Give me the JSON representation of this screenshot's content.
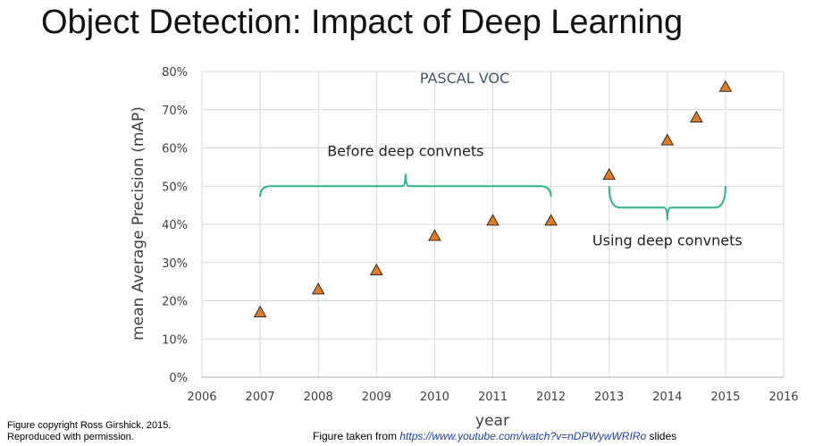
{
  "slide": {
    "title": "Object Detection: Impact of Deep Learning",
    "credit_line1": "Figure copyright Ross Girshick, 2015.",
    "credit_line2": "Reproduced with permission.",
    "source_prefix": "Figure taken from ",
    "source_link": "https://www.youtube.com/watch?v=nDPWywWRIRo",
    "source_suffix": " slides"
  },
  "chart_data": {
    "type": "scatter",
    "title": "PASCAL VOC",
    "xlabel": "year",
    "ylabel": "mean Average Precision (mAP)",
    "xlim": [
      2006,
      2016
    ],
    "ylim": [
      0,
      80
    ],
    "x_ticks": [
      "2006",
      "2007",
      "2008",
      "2009",
      "2010",
      "2011",
      "2012",
      "2013",
      "2014",
      "2015",
      "2016"
    ],
    "y_ticks": [
      "0%",
      "10%",
      "20%",
      "30%",
      "40%",
      "50%",
      "60%",
      "70%",
      "80%"
    ],
    "grid": true,
    "marker": "triangle",
    "marker_color": "#e07b2a",
    "bracket_color": "#2bb38a",
    "points": [
      {
        "x": 2007,
        "y": 17
      },
      {
        "x": 2008,
        "y": 23
      },
      {
        "x": 2009,
        "y": 28
      },
      {
        "x": 2010,
        "y": 37
      },
      {
        "x": 2011,
        "y": 41
      },
      {
        "x": 2012,
        "y": 41
      },
      {
        "x": 2013,
        "y": 53
      },
      {
        "x": 2014,
        "y": 62
      },
      {
        "x": 2014.5,
        "y": 68
      },
      {
        "x": 2015,
        "y": 76
      }
    ],
    "annotations": [
      {
        "text": "Before deep convnets",
        "x_range": [
          2007,
          2012
        ],
        "y": 50,
        "position": "above"
      },
      {
        "text": "Using deep convnets",
        "x_range": [
          2013,
          2015
        ],
        "y": 50,
        "position": "below"
      }
    ]
  }
}
